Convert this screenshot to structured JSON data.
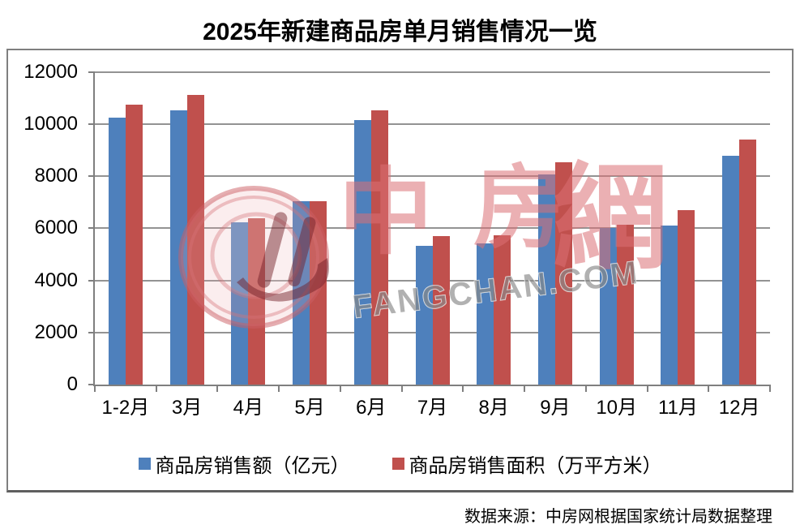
{
  "title": "2025年新建商品房单月销售情况一览",
  "source": "数据来源：中房网根据国家统计局数据整理",
  "watermark": {
    "char1": "中",
    "char2": "房",
    "char3": "網",
    "latin": "FANGCHAN.COM"
  },
  "colors": {
    "amount_blue": "#4E80BC",
    "area_red": "#C0504D",
    "gridline": "#939393",
    "axis": "#7F7F7F",
    "box_border": "#7F7F7F",
    "watermark_pink": "#DE8A8E",
    "watermark_gray": "#9B9B9B"
  },
  "chart_data": {
    "type": "bar",
    "title": "2025年新建商品房单月销售情况一览",
    "categories": [
      "1-2月",
      "3月",
      "4月",
      "5月",
      "6月",
      "7月",
      "8月",
      "9月",
      "10月",
      "11月",
      "12月"
    ],
    "series": [
      {
        "name": "商品房销售额（亿元）",
        "color": "#4E80BC",
        "values": [
          10250,
          10510,
          6240,
          7050,
          10140,
          5330,
          5430,
          8050,
          6000,
          6110,
          8790
        ]
      },
      {
        "name": "商品房销售面积（万平方米）",
        "color": "#C0504D",
        "values": [
          10740,
          11110,
          6390,
          7050,
          10530,
          5710,
          5740,
          8530,
          6120,
          6690,
          9400
        ]
      }
    ],
    "ylim": [
      0,
      12000
    ],
    "yticks": [
      0,
      2000,
      4000,
      6000,
      8000,
      10000,
      12000
    ],
    "xlabel": "",
    "ylabel": "",
    "grid": true,
    "legend_position": "bottom"
  }
}
